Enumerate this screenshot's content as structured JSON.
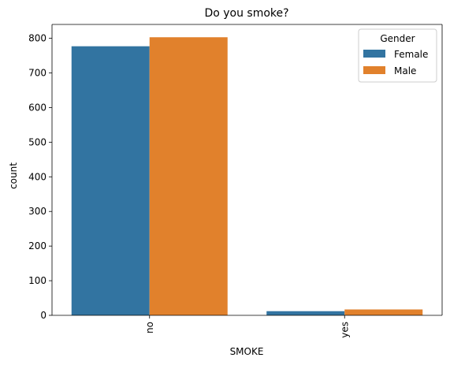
{
  "chart_data": {
    "type": "bar",
    "title": "Do you smoke?",
    "xlabel": "SMOKE",
    "ylabel": "count",
    "categories": [
      "no",
      "yes"
    ],
    "series": [
      {
        "name": "Female",
        "values": [
          777,
          12
        ],
        "color": "#3274a1"
      },
      {
        "name": "Male",
        "values": [
          803,
          17
        ],
        "color": "#e1812c"
      }
    ],
    "ylim": [
      0,
      840
    ],
    "yticks": [
      0,
      100,
      200,
      300,
      400,
      500,
      600,
      700,
      800
    ],
    "legend": {
      "title": "Gender",
      "position": "top-right"
    },
    "grid": false
  }
}
